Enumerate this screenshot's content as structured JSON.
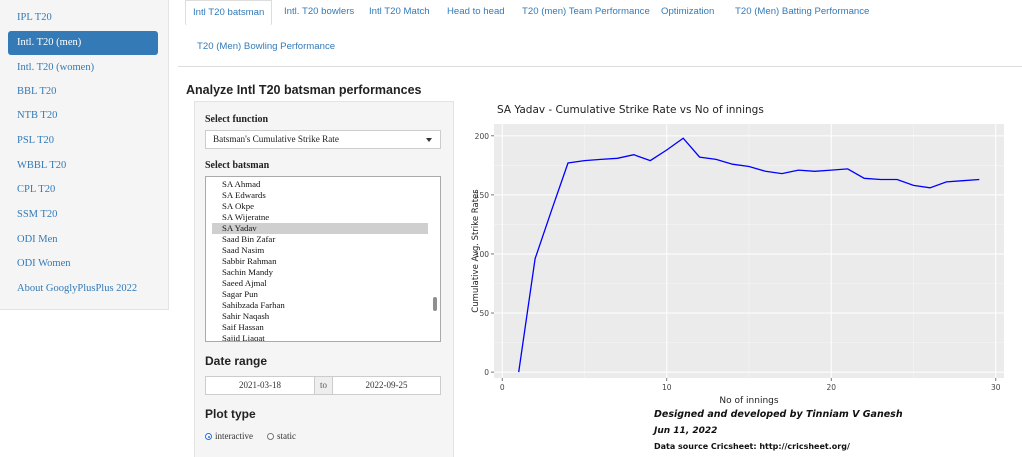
{
  "sidebar": {
    "items": [
      {
        "label": "IPL T20",
        "active": false
      },
      {
        "label": "Intl. T20 (men)",
        "active": true
      },
      {
        "label": "Intl. T20 (women)",
        "active": false
      },
      {
        "label": "BBL T20",
        "active": false
      },
      {
        "label": "NTB T20",
        "active": false
      },
      {
        "label": "PSL T20",
        "active": false
      },
      {
        "label": "WBBL T20",
        "active": false
      },
      {
        "label": "CPL T20",
        "active": false
      },
      {
        "label": "SSM T20",
        "active": false
      },
      {
        "label": "ODI Men",
        "active": false
      },
      {
        "label": "ODI Women",
        "active": false
      },
      {
        "label": "About GooglyPlusPlus 2022",
        "active": false
      }
    ]
  },
  "tabs": [
    {
      "label": "Intl T20 batsman",
      "active": true
    },
    {
      "label": "Intl. T20 bowlers",
      "active": false
    },
    {
      "label": "Intl T20 Match",
      "active": false
    },
    {
      "label": "Head to head",
      "active": false
    },
    {
      "label": "T20 (men) Team Performance",
      "active": false
    },
    {
      "label": "Optimization",
      "active": false
    },
    {
      "label": "T20 (Men) Batting Performance",
      "active": false
    },
    {
      "label": "T20 (Men) Bowling Performance",
      "active": false
    }
  ],
  "heading": "Analyze Intl T20 batsman performances",
  "controls": {
    "function_label": "Select function",
    "function_value": "Batsman's Cumulative Strike Rate",
    "batsman_label": "Select batsman",
    "batsmen": [
      "SA Ahmad",
      "SA Edwards",
      "SA Okpe",
      "SA Wijeratne",
      "SA Yadav",
      "Saad Bin Zafar",
      "Saad Nasim",
      "Sabbir Rahman",
      "Sachin Mandy",
      "Saeed Ajmal",
      "Sagar Pun",
      "Sahibzada Farhan",
      "Sahir Naqash",
      "Saif Hassan",
      "Sajid Liaqat"
    ],
    "selected_batsman": "SA Yadav",
    "date_label": "Date range",
    "date_from": "2021-03-18",
    "date_sep": "to",
    "date_to": "2022-09-25",
    "plot_type_label": "Plot type",
    "plot_options": [
      {
        "label": "interactive",
        "checked": true
      },
      {
        "label": "static",
        "checked": false
      }
    ]
  },
  "chart_data": {
    "type": "line",
    "title": "SA Yadav - Cumulative Strike Rate vs No of innings",
    "xlabel": "No of innings",
    "ylabel": "Cumulative Avg. Strike Rates",
    "xlim": [
      -0.5,
      30.5
    ],
    "ylim": [
      -5,
      210
    ],
    "xticks": [
      0,
      10,
      20,
      30
    ],
    "yticks": [
      0,
      50,
      100,
      150,
      200
    ],
    "line_color": "#0000ff",
    "background": "#ebebeb",
    "x": [
      1,
      2,
      3,
      4,
      5,
      6,
      7,
      8,
      9,
      10,
      11,
      12,
      13,
      14,
      15,
      16,
      17,
      18,
      19,
      20,
      21,
      22,
      23,
      24,
      25,
      26,
      27,
      28,
      29
    ],
    "y": [
      0,
      96,
      137,
      177,
      179,
      180,
      181,
      184,
      179,
      188,
      198,
      182,
      180,
      176,
      174,
      170,
      168,
      171,
      170,
      171,
      172,
      164,
      163,
      163,
      158,
      156,
      161,
      162,
      163
    ]
  },
  "footer": {
    "credit": "Designed and developed by Tinniam V Ganesh",
    "date": "Jun 11, 2022",
    "source": "Data source Cricsheet: http://cricsheet.org/"
  }
}
